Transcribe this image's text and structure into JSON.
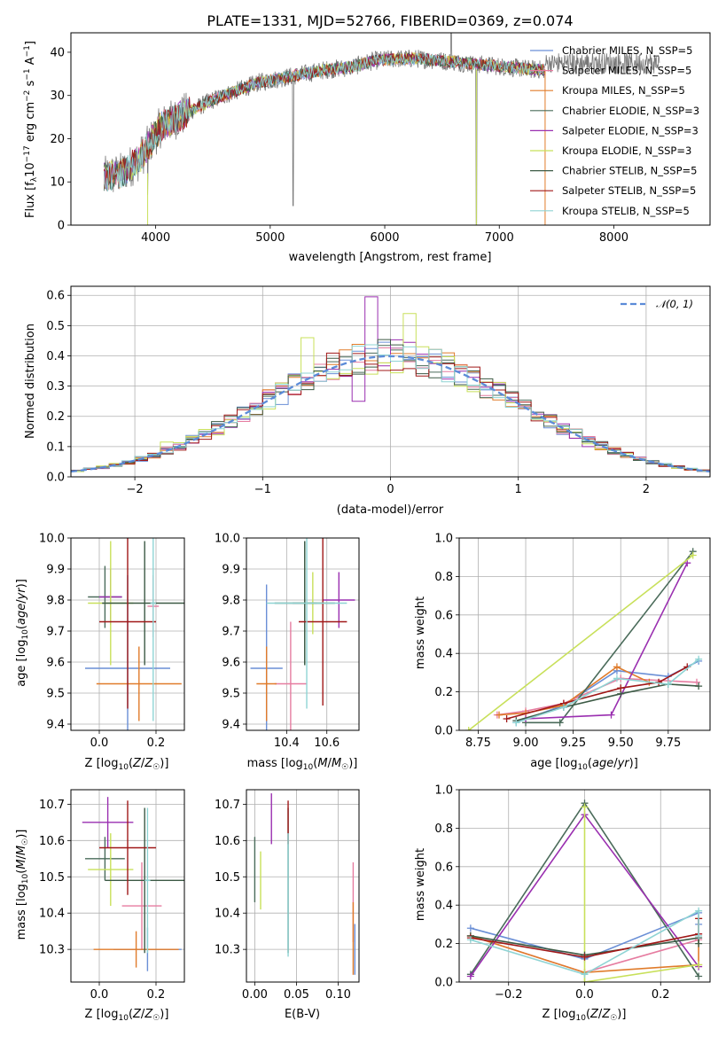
{
  "chart_data": [
    {
      "id": "spectrum",
      "type": "line",
      "title": "PLATE=1331, MJD=52766, FIBERID=0369, z=0.074",
      "xlabel": "wavelength [Angstrom, rest frame]",
      "ylabel": "Flux [f_λ 10^-17 erg cm^-2 s^-1 A^-1]",
      "xlim": [
        3260,
        8840
      ],
      "ylim": [
        0,
        44.5
      ],
      "xticks": [
        "4000",
        "5000",
        "6000",
        "7000",
        "8000"
      ],
      "yticks": [
        "0",
        "10",
        "20",
        "30",
        "40"
      ],
      "xtick_values": [
        4000,
        5000,
        6000,
        7000,
        8000
      ],
      "ytick_values": [
        0,
        10,
        20,
        30,
        40
      ],
      "grid": false,
      "legend": "upper-right",
      "trend": {
        "x": [
          3550,
          3700,
          3850,
          3950,
          4050,
          4200,
          4350,
          4500,
          4700,
          4900,
          5100,
          5300,
          5500,
          5700,
          5900,
          6100,
          6300,
          6500,
          6700,
          6900,
          7100,
          7300,
          7400
        ],
        "y": [
          11,
          12,
          15,
          19,
          23,
          25,
          27,
          29,
          31,
          33,
          34,
          35,
          36,
          36.5,
          38,
          38.5,
          38.5,
          38,
          37.5,
          37,
          36.5,
          36,
          36
        ]
      },
      "series": [
        {
          "name": "Chabrier MILES, N_SSP=5",
          "color": "#6a8fd6"
        },
        {
          "name": "Salpeter MILES, N_SSP=5",
          "color": "#e67ca0"
        },
        {
          "name": "Kroupa MILES, N_SSP=5",
          "color": "#e07b2a"
        },
        {
          "name": "Chabrier ELODIE, N_SSP=3",
          "color": "#4a6b5a"
        },
        {
          "name": "Salpeter ELODIE, N_SSP=3",
          "color": "#9a2fb0"
        },
        {
          "name": "Kroupa ELODIE, N_SSP=3",
          "color": "#c8e05a"
        },
        {
          "name": "Chabrier STELIB, N_SSP=5",
          "color": "#3c5a45"
        },
        {
          "name": "Salpeter STELIB, N_SSP=5",
          "color": "#a01818"
        },
        {
          "name": "Kroupa STELIB, N_SSP=5",
          "color": "#8fd4d4"
        }
      ],
      "data_color": "#777777"
    },
    {
      "id": "residuals",
      "type": "histogram",
      "xlabel": "(data-model)/error",
      "ylabel": "Normed distribution",
      "xlim": [
        -2.5,
        2.5
      ],
      "ylim": [
        0,
        0.63
      ],
      "xticks": [
        "−2",
        "−1",
        "0",
        "1",
        "2"
      ],
      "yticks": [
        "0.0",
        "0.1",
        "0.2",
        "0.3",
        "0.4",
        "0.5",
        "0.6"
      ],
      "xtick_values": [
        -2,
        -1,
        0,
        1,
        2
      ],
      "ytick_values": [
        0,
        0.1,
        0.2,
        0.3,
        0.4,
        0.5,
        0.6
      ],
      "grid": true,
      "legend": "upper-right",
      "legend_label": "N(0, 1)",
      "reference_curve": {
        "name": "𝒩(0, 1)",
        "color": "#5b8bd8",
        "style": "dashed"
      },
      "bin_width": 0.1,
      "bin_start": -2.5
    },
    {
      "id": "age-vs-Z",
      "type": "scatter",
      "xlabel": "Z [log10(Z/Z☉)]",
      "ylabel": "age  [log10(age/yr)]",
      "xlim": [
        -0.1,
        0.3
      ],
      "ylim": [
        9.38,
        10.0
      ],
      "xticks": [
        "0.0",
        "0.2"
      ],
      "yticks": [
        "9.4",
        "9.5",
        "9.6",
        "9.7",
        "9.8",
        "9.9",
        "10.0"
      ],
      "xtick_values": [
        0.0,
        0.2
      ],
      "ytick_values": [
        9.4,
        9.5,
        9.6,
        9.7,
        9.8,
        9.9,
        10.0
      ],
      "grid": true,
      "points": [
        {
          "x": 0.1,
          "y": 9.58,
          "xerr": 0.15,
          "yerr": 0.3,
          "color": "#6a8fd6"
        },
        {
          "x": 0.19,
          "y": 9.78,
          "xerr": 0.02,
          "yerr": 0.1,
          "color": "#e67ca0"
        },
        {
          "x": 0.14,
          "y": 9.53,
          "xerr": 0.15,
          "yerr": 0.12,
          "color": "#e07b2a"
        },
        {
          "x": 0.02,
          "y": 9.81,
          "xerr": 0.06,
          "yerr": 0.1,
          "color": "#4a6b5a"
        },
        {
          "x": 0.04,
          "y": 9.81,
          "xerr": 0.04,
          "yerr": 0.09,
          "color": "#9a2fb0"
        },
        {
          "x": 0.04,
          "y": 9.79,
          "xerr": 0.08,
          "yerr": 0.2,
          "color": "#c8e05a"
        },
        {
          "x": 0.16,
          "y": 9.79,
          "xerr": 0.15,
          "yerr": 0.2,
          "color": "#3c5a45"
        },
        {
          "x": 0.1,
          "y": 9.73,
          "xerr": 0.1,
          "yerr": 0.28,
          "color": "#a01818"
        },
        {
          "x": 0.19,
          "y": 9.79,
          "xerr": 0.01,
          "yerr": 0.38,
          "color": "#8fd4d4"
        }
      ]
    },
    {
      "id": "age-vs-mass",
      "type": "scatter",
      "xlabel": "mass [log10(M/M☉)]",
      "ylabel": "",
      "xlim": [
        10.2,
        10.76
      ],
      "ylim": [
        9.38,
        10.0
      ],
      "xticks": [
        "10.4",
        "10.6"
      ],
      "yticks": [
        "9.4",
        "9.5",
        "9.6",
        "9.7",
        "9.8",
        "9.9",
        "10.0"
      ],
      "xtick_values": [
        10.4,
        10.6
      ],
      "ytick_values": [
        9.4,
        9.5,
        9.6,
        9.7,
        9.8,
        9.9,
        10.0
      ],
      "grid": true,
      "points": [
        {
          "x": 10.3,
          "y": 9.58,
          "xerr": 0.08,
          "yerr": 0.27,
          "color": "#6a8fd6"
        },
        {
          "x": 10.42,
          "y": 9.53,
          "xerr": 0.08,
          "yerr": 0.2,
          "color": "#e67ca0"
        },
        {
          "x": 10.3,
          "y": 9.53,
          "xerr": 0.05,
          "yerr": 0.12,
          "color": "#e07b2a"
        },
        {
          "x": 10.49,
          "y": 9.79,
          "xerr": 0.06,
          "yerr": 0.2,
          "color": "#4a6b5a"
        },
        {
          "x": 10.66,
          "y": 9.8,
          "xerr": 0.08,
          "yerr": 0.09,
          "color": "#9a2fb0"
        },
        {
          "x": 10.53,
          "y": 9.79,
          "xerr": 0.06,
          "yerr": 0.1,
          "color": "#c8e05a"
        },
        {
          "x": 10.49,
          "y": 9.79,
          "xerr": 0.15,
          "yerr": 0.2,
          "color": "#3c5a45"
        },
        {
          "x": 10.58,
          "y": 9.73,
          "xerr": 0.12,
          "yerr": 0.27,
          "color": "#a01818"
        },
        {
          "x": 10.5,
          "y": 9.79,
          "xerr": 0.2,
          "yerr": 0.34,
          "color": "#8fd4d4"
        }
      ]
    },
    {
      "id": "weight-vs-age",
      "type": "line",
      "xlabel": "age  [log10(age/yr)]",
      "ylabel": "mass weight",
      "xlim": [
        8.65,
        9.97
      ],
      "ylim": [
        0,
        1.0
      ],
      "xticks": [
        "8.75",
        "9.00",
        "9.25",
        "9.50",
        "9.75"
      ],
      "yticks": [
        "0.0",
        "0.2",
        "0.4",
        "0.6",
        "0.8",
        "1.0"
      ],
      "xtick_values": [
        8.75,
        9.0,
        9.25,
        9.5,
        9.75
      ],
      "ytick_values": [
        0,
        0.2,
        0.4,
        0.6,
        0.8,
        1.0
      ],
      "grid": true,
      "series": [
        {
          "color": "#6a8fd6",
          "x": [
            8.95,
            9.2,
            9.48,
            9.75,
            9.91
          ],
          "y": [
            0.04,
            0.13,
            0.31,
            0.28,
            0.36
          ]
        },
        {
          "color": "#e67ca0",
          "x": [
            8.85,
            9.0,
            9.2,
            9.5,
            9.9
          ],
          "y": [
            0.08,
            0.1,
            0.14,
            0.27,
            0.25
          ]
        },
        {
          "color": "#e07b2a",
          "x": [
            8.86,
            9.0,
            9.2,
            9.48,
            9.65
          ],
          "y": [
            0.08,
            0.09,
            0.13,
            0.33,
            0.25
          ]
        },
        {
          "color": "#4a6b5a",
          "x": [
            9.0,
            9.18,
            9.88
          ],
          "y": [
            0.04,
            0.04,
            0.93
          ]
        },
        {
          "color": "#9a2fb0",
          "x": [
            9.0,
            9.45,
            9.85
          ],
          "y": [
            0.06,
            0.08,
            0.87
          ]
        },
        {
          "color": "#c8e05a",
          "x": [
            8.7,
            9.88
          ],
          "y": [
            0.0,
            0.91
          ]
        },
        {
          "color": "#3c5a45",
          "x": [
            8.95,
            9.2,
            9.5,
            9.75,
            9.91
          ],
          "y": [
            0.05,
            0.12,
            0.19,
            0.24,
            0.23
          ]
        },
        {
          "color": "#a01818",
          "x": [
            8.9,
            9.2,
            9.5,
            9.7,
            9.85
          ],
          "y": [
            0.06,
            0.14,
            0.22,
            0.25,
            0.33
          ]
        },
        {
          "color": "#8fd4d4",
          "x": [
            8.95,
            9.2,
            9.48,
            9.75,
            9.91
          ],
          "y": [
            0.04,
            0.12,
            0.27,
            0.24,
            0.37
          ]
        }
      ]
    },
    {
      "id": "mass-vs-Z",
      "type": "scatter",
      "xlabel": "Z [log10(Z/Z☉)]",
      "ylabel": "mass [log10(M/M☉)]",
      "xlim": [
        -0.1,
        0.3
      ],
      "ylim": [
        10.21,
        10.74
      ],
      "xticks": [
        "0.0",
        "0.2"
      ],
      "yticks": [
        "10.3",
        "10.4",
        "10.5",
        "10.6",
        "10.7"
      ],
      "xtick_values": [
        0.0,
        0.2
      ],
      "ytick_values": [
        10.3,
        10.4,
        10.5,
        10.6,
        10.7
      ],
      "grid": true,
      "points": [
        {
          "x": 0.17,
          "y": 10.3,
          "xerr": 0.12,
          "yerr": 0.06,
          "color": "#6a8fd6"
        },
        {
          "x": 0.15,
          "y": 10.42,
          "xerr": 0.07,
          "yerr": 0.12,
          "color": "#e67ca0"
        },
        {
          "x": 0.13,
          "y": 10.3,
          "xerr": 0.15,
          "yerr": 0.05,
          "color": "#e07b2a"
        },
        {
          "x": 0.02,
          "y": 10.55,
          "xerr": 0.07,
          "yerr": 0.06,
          "color": "#4a6b5a"
        },
        {
          "x": 0.03,
          "y": 10.65,
          "xerr": 0.09,
          "yerr": 0.07,
          "color": "#9a2fb0"
        },
        {
          "x": 0.04,
          "y": 10.52,
          "xerr": 0.08,
          "yerr": 0.1,
          "color": "#c8e05a"
        },
        {
          "x": 0.16,
          "y": 10.49,
          "xerr": 0.14,
          "yerr": 0.2,
          "color": "#3c5a45"
        },
        {
          "x": 0.1,
          "y": 10.58,
          "xerr": 0.1,
          "yerr": 0.13,
          "color": "#a01818"
        },
        {
          "x": 0.17,
          "y": 10.49,
          "xerr": 0.01,
          "yerr": 0.2,
          "color": "#8fd4d4"
        }
      ]
    },
    {
      "id": "mass-vs-EBV",
      "type": "scatter",
      "xlabel": "E(B-V)",
      "ylabel": "",
      "xlim": [
        -0.01,
        0.125
      ],
      "ylim": [
        10.21,
        10.74
      ],
      "xticks": [
        "0.00",
        "0.05",
        "0.10"
      ],
      "yticks": [
        "10.3",
        "10.4",
        "10.5",
        "10.6",
        "10.7"
      ],
      "xtick_values": [
        0.0,
        0.05,
        0.1
      ],
      "ytick_values": [
        10.3,
        10.4,
        10.5,
        10.6,
        10.7
      ],
      "grid": true,
      "points": [
        {
          "x": 0.12,
          "y": 10.3,
          "xerr": 0,
          "yerr": 0.07,
          "color": "#6a8fd6"
        },
        {
          "x": 0.118,
          "y": 10.43,
          "xerr": 0,
          "yerr": 0.11,
          "color": "#e67ca0"
        },
        {
          "x": 0.118,
          "y": 10.33,
          "xerr": 0,
          "yerr": 0.1,
          "color": "#e07b2a"
        },
        {
          "x": 0.0,
          "y": 10.52,
          "xerr": 0,
          "yerr": 0.09,
          "color": "#4a6b5a"
        },
        {
          "x": 0.02,
          "y": 10.66,
          "xerr": 0,
          "yerr": 0.07,
          "color": "#9a2fb0"
        },
        {
          "x": 0.007,
          "y": 10.49,
          "xerr": 0,
          "yerr": 0.08,
          "color": "#c8e05a"
        },
        {
          "x": 0.04,
          "y": 10.49,
          "xerr": 0,
          "yerr": 0.2,
          "color": "#3c5a45"
        },
        {
          "x": 0.04,
          "y": 10.65,
          "xerr": 0,
          "yerr": 0.06,
          "color": "#a01818"
        },
        {
          "x": 0.04,
          "y": 10.45,
          "xerr": 0,
          "yerr": 0.17,
          "color": "#8fd4d4"
        }
      ]
    },
    {
      "id": "weight-vs-Z",
      "type": "line",
      "xlabel": "Z [log10(Z/Z☉)]",
      "ylabel": "mass weight",
      "xlim": [
        -0.33,
        0.33
      ],
      "ylim": [
        0,
        1.0
      ],
      "xticks": [
        "−0.2",
        "0.0",
        "0.2"
      ],
      "yticks": [
        "0.0",
        "0.2",
        "0.4",
        "0.6",
        "0.8",
        "1.0"
      ],
      "xtick_values": [
        -0.2,
        0.0,
        0.2
      ],
      "ytick_values": [
        0,
        0.2,
        0.4,
        0.6,
        0.8,
        1.0
      ],
      "grid": true,
      "series": [
        {
          "color": "#6a8fd6",
          "x": [
            -0.3,
            0.0,
            0.3,
            0.3
          ],
          "y": [
            0.28,
            0.12,
            0.36,
            0.3
          ]
        },
        {
          "color": "#e67ca0",
          "x": [
            -0.3,
            0.0,
            0.3,
            0.3
          ],
          "y": [
            0.24,
            0.05,
            0.22,
            0.25
          ]
        },
        {
          "color": "#e07b2a",
          "x": [
            -0.3,
            0.0,
            0.3,
            0.3
          ],
          "y": [
            0.24,
            0.05,
            0.09,
            0.33
          ]
        },
        {
          "color": "#4a6b5a",
          "x": [
            -0.3,
            0.0,
            0.3
          ],
          "y": [
            0.04,
            0.93,
            0.03
          ]
        },
        {
          "color": "#9a2fb0",
          "x": [
            -0.3,
            0.0,
            0.3
          ],
          "y": [
            0.03,
            0.87,
            0.08
          ]
        },
        {
          "color": "#c8e05a",
          "x": [
            0.0,
            0.0,
            0.3
          ],
          "y": [
            0.91,
            0.0,
            0.09
          ]
        },
        {
          "color": "#3c5a45",
          "x": [
            -0.3,
            0.0,
            0.3,
            0.3
          ],
          "y": [
            0.24,
            0.14,
            0.23,
            0.2
          ]
        },
        {
          "color": "#a01818",
          "x": [
            -0.3,
            0.0,
            0.3,
            0.3
          ],
          "y": [
            0.23,
            0.13,
            0.25,
            0.33
          ]
        },
        {
          "color": "#8fd4d4",
          "x": [
            -0.3,
            0.0,
            0.3,
            0.3
          ],
          "y": [
            0.22,
            0.04,
            0.37,
            0.24
          ]
        }
      ]
    }
  ]
}
